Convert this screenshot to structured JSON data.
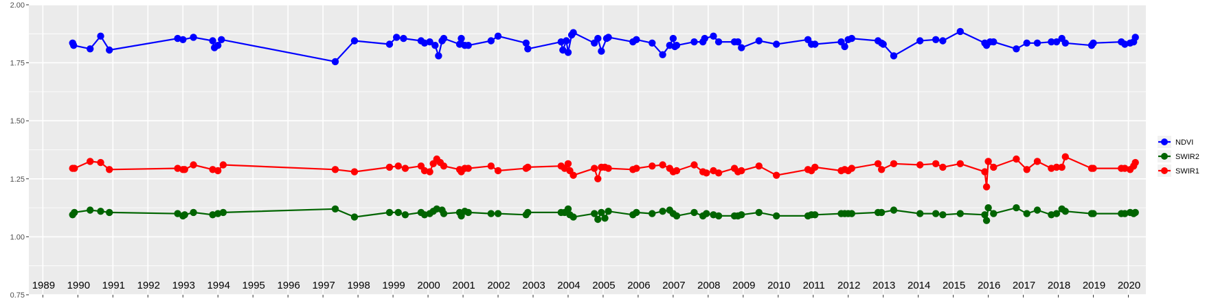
{
  "chart_data": {
    "type": "line",
    "title": "",
    "xlabel": "",
    "ylabel": "",
    "xlim": [
      1988.6,
      2020.5
    ],
    "ylim": [
      0.75,
      2.0
    ],
    "y_ticks": [
      "0.75",
      "1.00",
      "1.25",
      "1.50",
      "1.75",
      "2.00"
    ],
    "x_ticks": [
      "1989",
      "1990",
      "1991",
      "1992",
      "1993",
      "1994",
      "1995",
      "1996",
      "1997",
      "1998",
      "1999",
      "2000",
      "2001",
      "2002",
      "2003",
      "2004",
      "2005",
      "2006",
      "2007",
      "2008",
      "2009",
      "2010",
      "2011",
      "2012",
      "2013",
      "2014",
      "2015",
      "2016",
      "2017",
      "2018",
      "2019",
      "2020"
    ],
    "grid": true,
    "legend_position": "right",
    "series": [
      {
        "name": "NDVI",
        "color": "#0000ff",
        "points": [
          [
            1989.85,
            1.835
          ],
          [
            1989.88,
            1.825
          ],
          [
            1990.35,
            1.81
          ],
          [
            1990.65,
            1.865
          ],
          [
            1990.9,
            1.805
          ],
          [
            1992.85,
            1.855
          ],
          [
            1993.0,
            1.85
          ],
          [
            1993.3,
            1.86
          ],
          [
            1993.85,
            1.845
          ],
          [
            1993.9,
            1.815
          ],
          [
            1994.0,
            1.825
          ],
          [
            1994.1,
            1.85
          ],
          [
            1997.35,
            1.755
          ],
          [
            1997.9,
            1.845
          ],
          [
            1998.9,
            1.83
          ],
          [
            1999.1,
            1.86
          ],
          [
            1999.3,
            1.855
          ],
          [
            1999.8,
            1.845
          ],
          [
            1999.9,
            1.835
          ],
          [
            2000.05,
            1.84
          ],
          [
            2000.2,
            1.825
          ],
          [
            2000.3,
            1.78
          ],
          [
            2000.4,
            1.845
          ],
          [
            2000.45,
            1.855
          ],
          [
            2000.9,
            1.83
          ],
          [
            2000.95,
            1.855
          ],
          [
            2001.05,
            1.825
          ],
          [
            2001.15,
            1.825
          ],
          [
            2001.8,
            1.845
          ],
          [
            2002.0,
            1.865
          ],
          [
            2002.8,
            1.835
          ],
          [
            2002.85,
            1.81
          ],
          [
            2003.8,
            1.84
          ],
          [
            2003.85,
            1.805
          ],
          [
            2003.95,
            1.845
          ],
          [
            2004.0,
            1.795
          ],
          [
            2004.1,
            1.87
          ],
          [
            2004.15,
            1.88
          ],
          [
            2004.75,
            1.835
          ],
          [
            2004.85,
            1.855
          ],
          [
            2004.95,
            1.8
          ],
          [
            2005.1,
            1.855
          ],
          [
            2005.15,
            1.86
          ],
          [
            2005.85,
            1.84
          ],
          [
            2005.95,
            1.85
          ],
          [
            2006.4,
            1.835
          ],
          [
            2006.7,
            1.785
          ],
          [
            2006.9,
            1.825
          ],
          [
            2007.0,
            1.855
          ],
          [
            2007.05,
            1.82
          ],
          [
            2007.1,
            1.825
          ],
          [
            2007.6,
            1.84
          ],
          [
            2007.85,
            1.84
          ],
          [
            2007.9,
            1.855
          ],
          [
            2008.15,
            1.865
          ],
          [
            2008.3,
            1.84
          ],
          [
            2008.75,
            1.84
          ],
          [
            2008.85,
            1.84
          ],
          [
            2008.95,
            1.815
          ],
          [
            2009.45,
            1.845
          ],
          [
            2009.95,
            1.83
          ],
          [
            2010.85,
            1.85
          ],
          [
            2010.95,
            1.83
          ],
          [
            2011.05,
            1.83
          ],
          [
            2011.8,
            1.84
          ],
          [
            2011.9,
            1.82
          ],
          [
            2012.0,
            1.85
          ],
          [
            2012.1,
            1.855
          ],
          [
            2012.85,
            1.845
          ],
          [
            2012.95,
            1.835
          ],
          [
            2013.0,
            1.83
          ],
          [
            2013.3,
            1.78
          ],
          [
            2014.05,
            1.845
          ],
          [
            2014.5,
            1.85
          ],
          [
            2014.7,
            1.845
          ],
          [
            2015.2,
            1.885
          ],
          [
            2015.9,
            1.835
          ],
          [
            2015.95,
            1.825
          ],
          [
            2016.05,
            1.84
          ],
          [
            2016.15,
            1.84
          ],
          [
            2016.8,
            1.81
          ],
          [
            2017.1,
            1.835
          ],
          [
            2017.4,
            1.835
          ],
          [
            2017.8,
            1.84
          ],
          [
            2017.95,
            1.84
          ],
          [
            2018.1,
            1.855
          ],
          [
            2018.2,
            1.835
          ],
          [
            2018.95,
            1.825
          ],
          [
            2019.0,
            1.835
          ],
          [
            2019.8,
            1.84
          ],
          [
            2019.9,
            1.83
          ],
          [
            2020.05,
            1.835
          ],
          [
            2020.15,
            1.84
          ],
          [
            2020.2,
            1.86
          ]
        ]
      },
      {
        "name": "SWIR2",
        "color": "#006400",
        "points": [
          [
            1989.85,
            1.095
          ],
          [
            1989.9,
            1.105
          ],
          [
            1990.35,
            1.115
          ],
          [
            1990.65,
            1.11
          ],
          [
            1990.9,
            1.105
          ],
          [
            1992.85,
            1.1
          ],
          [
            1993.0,
            1.09
          ],
          [
            1993.05,
            1.095
          ],
          [
            1993.3,
            1.105
          ],
          [
            1993.85,
            1.095
          ],
          [
            1994.0,
            1.1
          ],
          [
            1994.15,
            1.105
          ],
          [
            1997.35,
            1.12
          ],
          [
            1997.9,
            1.085
          ],
          [
            1998.9,
            1.105
          ],
          [
            1999.15,
            1.105
          ],
          [
            1999.35,
            1.095
          ],
          [
            1999.8,
            1.105
          ],
          [
            1999.9,
            1.095
          ],
          [
            2000.05,
            1.1
          ],
          [
            2000.15,
            1.11
          ],
          [
            2000.25,
            1.12
          ],
          [
            2000.4,
            1.115
          ],
          [
            2000.45,
            1.1
          ],
          [
            2000.9,
            1.105
          ],
          [
            2000.95,
            1.09
          ],
          [
            2001.05,
            1.11
          ],
          [
            2001.15,
            1.105
          ],
          [
            2001.8,
            1.1
          ],
          [
            2002.0,
            1.1
          ],
          [
            2002.8,
            1.095
          ],
          [
            2002.85,
            1.105
          ],
          [
            2003.8,
            1.105
          ],
          [
            2003.9,
            1.105
          ],
          [
            2004.0,
            1.12
          ],
          [
            2004.05,
            1.095
          ],
          [
            2004.15,
            1.085
          ],
          [
            2004.75,
            1.1
          ],
          [
            2004.85,
            1.075
          ],
          [
            2004.95,
            1.105
          ],
          [
            2005.05,
            1.08
          ],
          [
            2005.15,
            1.11
          ],
          [
            2005.85,
            1.095
          ],
          [
            2005.95,
            1.105
          ],
          [
            2006.4,
            1.1
          ],
          [
            2006.7,
            1.11
          ],
          [
            2006.9,
            1.115
          ],
          [
            2007.0,
            1.1
          ],
          [
            2007.1,
            1.09
          ],
          [
            2007.6,
            1.105
          ],
          [
            2007.85,
            1.09
          ],
          [
            2007.95,
            1.1
          ],
          [
            2008.15,
            1.095
          ],
          [
            2008.3,
            1.09
          ],
          [
            2008.75,
            1.09
          ],
          [
            2008.85,
            1.09
          ],
          [
            2008.95,
            1.095
          ],
          [
            2009.45,
            1.105
          ],
          [
            2009.95,
            1.09
          ],
          [
            2010.85,
            1.09
          ],
          [
            2010.95,
            1.095
          ],
          [
            2011.05,
            1.095
          ],
          [
            2011.8,
            1.1
          ],
          [
            2011.9,
            1.1
          ],
          [
            2012.0,
            1.1
          ],
          [
            2012.1,
            1.1
          ],
          [
            2012.85,
            1.105
          ],
          [
            2012.95,
            1.105
          ],
          [
            2013.3,
            1.115
          ],
          [
            2014.05,
            1.1
          ],
          [
            2014.5,
            1.1
          ],
          [
            2014.7,
            1.095
          ],
          [
            2015.2,
            1.1
          ],
          [
            2015.9,
            1.095
          ],
          [
            2015.95,
            1.07
          ],
          [
            2016.0,
            1.125
          ],
          [
            2016.15,
            1.1
          ],
          [
            2016.8,
            1.125
          ],
          [
            2017.1,
            1.1
          ],
          [
            2017.4,
            1.115
          ],
          [
            2017.8,
            1.095
          ],
          [
            2017.95,
            1.1
          ],
          [
            2018.1,
            1.12
          ],
          [
            2018.2,
            1.11
          ],
          [
            2018.95,
            1.1
          ],
          [
            2019.0,
            1.1
          ],
          [
            2019.8,
            1.1
          ],
          [
            2019.9,
            1.1
          ],
          [
            2020.05,
            1.105
          ],
          [
            2020.15,
            1.1
          ],
          [
            2020.2,
            1.105
          ]
        ]
      },
      {
        "name": "SWIR1",
        "color": "#ff0000",
        "points": [
          [
            1989.85,
            1.295
          ],
          [
            1989.9,
            1.295
          ],
          [
            1990.35,
            1.325
          ],
          [
            1990.65,
            1.32
          ],
          [
            1990.9,
            1.29
          ],
          [
            1992.85,
            1.295
          ],
          [
            1993.0,
            1.29
          ],
          [
            1993.05,
            1.29
          ],
          [
            1993.3,
            1.31
          ],
          [
            1993.85,
            1.29
          ],
          [
            1994.0,
            1.285
          ],
          [
            1994.15,
            1.31
          ],
          [
            1997.35,
            1.29
          ],
          [
            1997.9,
            1.28
          ],
          [
            1998.9,
            1.3
          ],
          [
            1999.15,
            1.305
          ],
          [
            1999.35,
            1.295
          ],
          [
            1999.8,
            1.305
          ],
          [
            1999.9,
            1.285
          ],
          [
            2000.05,
            1.28
          ],
          [
            2000.15,
            1.315
          ],
          [
            2000.25,
            1.335
          ],
          [
            2000.35,
            1.32
          ],
          [
            2000.45,
            1.305
          ],
          [
            2000.9,
            1.29
          ],
          [
            2000.95,
            1.28
          ],
          [
            2001.05,
            1.295
          ],
          [
            2001.15,
            1.295
          ],
          [
            2001.8,
            1.305
          ],
          [
            2002.0,
            1.285
          ],
          [
            2002.8,
            1.295
          ],
          [
            2002.85,
            1.3
          ],
          [
            2003.8,
            1.305
          ],
          [
            2003.9,
            1.295
          ],
          [
            2004.0,
            1.315
          ],
          [
            2004.05,
            1.285
          ],
          [
            2004.15,
            1.265
          ],
          [
            2004.75,
            1.295
          ],
          [
            2004.85,
            1.25
          ],
          [
            2004.95,
            1.3
          ],
          [
            2005.05,
            1.3
          ],
          [
            2005.15,
            1.295
          ],
          [
            2005.85,
            1.29
          ],
          [
            2005.95,
            1.295
          ],
          [
            2006.4,
            1.305
          ],
          [
            2006.7,
            1.31
          ],
          [
            2006.9,
            1.295
          ],
          [
            2007.0,
            1.28
          ],
          [
            2007.1,
            1.285
          ],
          [
            2007.6,
            1.31
          ],
          [
            2007.85,
            1.28
          ],
          [
            2007.95,
            1.275
          ],
          [
            2008.15,
            1.285
          ],
          [
            2008.3,
            1.275
          ],
          [
            2008.75,
            1.295
          ],
          [
            2008.85,
            1.28
          ],
          [
            2008.95,
            1.285
          ],
          [
            2009.45,
            1.305
          ],
          [
            2009.95,
            1.265
          ],
          [
            2010.85,
            1.29
          ],
          [
            2010.95,
            1.285
          ],
          [
            2011.05,
            1.3
          ],
          [
            2011.8,
            1.285
          ],
          [
            2011.9,
            1.29
          ],
          [
            2012.0,
            1.285
          ],
          [
            2012.1,
            1.295
          ],
          [
            2012.85,
            1.315
          ],
          [
            2012.95,
            1.29
          ],
          [
            2013.3,
            1.315
          ],
          [
            2014.05,
            1.31
          ],
          [
            2014.5,
            1.315
          ],
          [
            2014.7,
            1.3
          ],
          [
            2015.2,
            1.315
          ],
          [
            2015.9,
            1.28
          ],
          [
            2015.95,
            1.215
          ],
          [
            2016.0,
            1.325
          ],
          [
            2016.15,
            1.3
          ],
          [
            2016.8,
            1.335
          ],
          [
            2017.1,
            1.29
          ],
          [
            2017.4,
            1.325
          ],
          [
            2017.8,
            1.295
          ],
          [
            2017.95,
            1.3
          ],
          [
            2018.1,
            1.3
          ],
          [
            2018.2,
            1.345
          ],
          [
            2018.95,
            1.295
          ],
          [
            2019.0,
            1.295
          ],
          [
            2019.8,
            1.295
          ],
          [
            2019.9,
            1.295
          ],
          [
            2020.05,
            1.29
          ],
          [
            2020.15,
            1.305
          ],
          [
            2020.2,
            1.32
          ]
        ]
      }
    ]
  }
}
